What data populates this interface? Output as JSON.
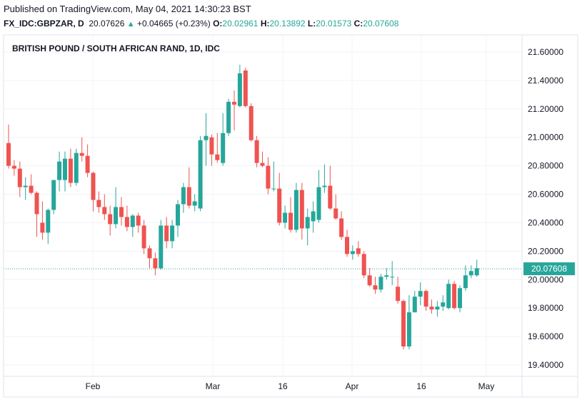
{
  "header": {
    "published": "Published on TradingView.com, May 04, 2021 14:30:23 BST",
    "symbol": "FX_IDC:GBPZAR, D",
    "last": "20.07626",
    "change": "+0.04665 (+0.23%)",
    "o_label": "O:",
    "o_value": "20.02961",
    "h_label": "H:",
    "h_value": "20.13892",
    "l_label": "L:",
    "l_value": "20.01573",
    "c_label": "C:",
    "c_value": "20.07608"
  },
  "colors": {
    "up": "#26a69a",
    "down": "#ef5350",
    "grid": "#f0f3fa",
    "frame": "#e0e3eb",
    "text": "#131722"
  },
  "chart_data": {
    "type": "candlestick",
    "title": "BRITISH POUND / SOUTH AFRICAN RAND, 1D, IDC",
    "ylim": [
      19.32,
      21.72
    ],
    "yticks": [
      "21.60000",
      "21.40000",
      "21.20000",
      "21.00000",
      "20.80000",
      "20.60000",
      "20.40000",
      "20.20000",
      "20.00000",
      "19.80000",
      "19.60000",
      "19.40000"
    ],
    "xticks": [
      "Feb",
      "Mar",
      "16",
      "Apr",
      "16",
      "May"
    ],
    "last_price_label": "20.07608",
    "last_price": 20.07608,
    "candles": [
      {
        "o": 20.96,
        "h": 21.09,
        "l": 20.78,
        "c": 20.8
      },
      {
        "o": 20.8,
        "h": 20.84,
        "l": 20.73,
        "c": 20.78
      },
      {
        "o": 20.78,
        "h": 20.83,
        "l": 20.58,
        "c": 20.65
      },
      {
        "o": 20.65,
        "h": 20.72,
        "l": 20.56,
        "c": 20.66
      },
      {
        "o": 20.66,
        "h": 20.74,
        "l": 20.6,
        "c": 20.61
      },
      {
        "o": 20.61,
        "h": 20.62,
        "l": 20.3,
        "c": 20.46
      },
      {
        "o": 20.4,
        "h": 20.55,
        "l": 20.28,
        "c": 20.33
      },
      {
        "o": 20.33,
        "h": 20.5,
        "l": 20.25,
        "c": 20.49
      },
      {
        "o": 20.49,
        "h": 20.68,
        "l": 20.46,
        "c": 20.7
      },
      {
        "o": 20.7,
        "h": 20.9,
        "l": 20.62,
        "c": 20.83
      },
      {
        "o": 20.7,
        "h": 20.9,
        "l": 20.62,
        "c": 20.85
      },
      {
        "o": 20.85,
        "h": 20.92,
        "l": 20.65,
        "c": 20.68
      },
      {
        "o": 20.68,
        "h": 20.92,
        "l": 20.66,
        "c": 20.89
      },
      {
        "o": 20.89,
        "h": 21.0,
        "l": 20.83,
        "c": 20.87
      },
      {
        "o": 20.87,
        "h": 20.95,
        "l": 20.72,
        "c": 20.75
      },
      {
        "o": 20.75,
        "h": 20.76,
        "l": 20.48,
        "c": 20.56
      },
      {
        "o": 20.56,
        "h": 20.62,
        "l": 20.47,
        "c": 20.51
      },
      {
        "o": 20.51,
        "h": 20.6,
        "l": 20.42,
        "c": 20.46
      },
      {
        "o": 20.46,
        "h": 20.52,
        "l": 20.31,
        "c": 20.39
      },
      {
        "o": 20.39,
        "h": 20.65,
        "l": 20.36,
        "c": 20.51
      },
      {
        "o": 20.51,
        "h": 20.58,
        "l": 20.38,
        "c": 20.44
      },
      {
        "o": 20.44,
        "h": 20.52,
        "l": 20.34,
        "c": 20.37
      },
      {
        "o": 20.37,
        "h": 20.46,
        "l": 20.3,
        "c": 20.45
      },
      {
        "o": 20.45,
        "h": 20.47,
        "l": 20.33,
        "c": 20.38
      },
      {
        "o": 20.38,
        "h": 20.42,
        "l": 20.18,
        "c": 20.22
      },
      {
        "o": 20.22,
        "h": 20.24,
        "l": 20.08,
        "c": 20.15
      },
      {
        "o": 20.15,
        "h": 20.19,
        "l": 20.03,
        "c": 20.08
      },
      {
        "o": 20.08,
        "h": 20.42,
        "l": 20.07,
        "c": 20.38
      },
      {
        "o": 20.38,
        "h": 20.44,
        "l": 20.22,
        "c": 20.27
      },
      {
        "o": 20.27,
        "h": 20.42,
        "l": 20.22,
        "c": 20.38
      },
      {
        "o": 20.38,
        "h": 20.56,
        "l": 20.3,
        "c": 20.53
      },
      {
        "o": 20.53,
        "h": 20.68,
        "l": 20.47,
        "c": 20.65
      },
      {
        "o": 20.65,
        "h": 20.79,
        "l": 20.5,
        "c": 20.52
      },
      {
        "o": 20.52,
        "h": 20.6,
        "l": 20.48,
        "c": 20.55
      },
      {
        "o": 20.5,
        "h": 21.01,
        "l": 20.48,
        "c": 20.98
      },
      {
        "o": 20.98,
        "h": 21.17,
        "l": 20.8,
        "c": 21.01
      },
      {
        "o": 21.0,
        "h": 21.02,
        "l": 20.8,
        "c": 20.88
      },
      {
        "o": 20.88,
        "h": 21.03,
        "l": 20.82,
        "c": 20.84
      },
      {
        "o": 20.82,
        "h": 21.17,
        "l": 20.8,
        "c": 21.03
      },
      {
        "o": 21.03,
        "h": 21.27,
        "l": 21.01,
        "c": 21.25
      },
      {
        "o": 21.25,
        "h": 21.33,
        "l": 21.05,
        "c": 21.23
      },
      {
        "o": 21.22,
        "h": 21.51,
        "l": 21.21,
        "c": 21.45
      },
      {
        "o": 21.47,
        "h": 21.49,
        "l": 21.21,
        "c": 21.22
      },
      {
        "o": 21.22,
        "h": 21.24,
        "l": 20.97,
        "c": 20.98
      },
      {
        "o": 20.98,
        "h": 21.01,
        "l": 20.79,
        "c": 20.82
      },
      {
        "o": 20.82,
        "h": 20.9,
        "l": 20.79,
        "c": 20.8
      },
      {
        "o": 20.8,
        "h": 20.86,
        "l": 20.6,
        "c": 20.64
      },
      {
        "o": 20.64,
        "h": 20.83,
        "l": 20.62,
        "c": 20.64
      },
      {
        "o": 20.64,
        "h": 20.75,
        "l": 20.38,
        "c": 20.4
      },
      {
        "o": 20.4,
        "h": 20.52,
        "l": 20.36,
        "c": 20.47
      },
      {
        "o": 20.47,
        "h": 20.58,
        "l": 20.33,
        "c": 20.35
      },
      {
        "o": 20.35,
        "h": 20.68,
        "l": 20.33,
        "c": 20.63
      },
      {
        "o": 20.63,
        "h": 20.68,
        "l": 20.28,
        "c": 20.36
      },
      {
        "o": 20.36,
        "h": 20.5,
        "l": 20.24,
        "c": 20.44
      },
      {
        "o": 20.41,
        "h": 20.55,
        "l": 20.33,
        "c": 20.48
      },
      {
        "o": 20.42,
        "h": 20.77,
        "l": 20.4,
        "c": 20.65
      },
      {
        "o": 20.65,
        "h": 20.81,
        "l": 20.61,
        "c": 20.66
      },
      {
        "o": 20.66,
        "h": 20.8,
        "l": 20.49,
        "c": 20.5
      },
      {
        "o": 20.5,
        "h": 20.6,
        "l": 20.42,
        "c": 20.43
      },
      {
        "o": 20.43,
        "h": 20.48,
        "l": 20.28,
        "c": 20.3
      },
      {
        "o": 20.3,
        "h": 20.35,
        "l": 20.16,
        "c": 20.18
      },
      {
        "o": 20.18,
        "h": 20.24,
        "l": 20.14,
        "c": 20.2
      },
      {
        "o": 20.22,
        "h": 20.27,
        "l": 20.16,
        "c": 20.18
      },
      {
        "o": 20.18,
        "h": 20.2,
        "l": 20.01,
        "c": 20.03
      },
      {
        "o": 20.03,
        "h": 20.08,
        "l": 19.95,
        "c": 19.96
      },
      {
        "o": 19.96,
        "h": 20.02,
        "l": 19.9,
        "c": 19.93
      },
      {
        "o": 19.93,
        "h": 20.04,
        "l": 19.91,
        "c": 20.02
      },
      {
        "o": 20.02,
        "h": 20.08,
        "l": 20.0,
        "c": 20.03
      },
      {
        "o": 20.02,
        "h": 20.13,
        "l": 19.96,
        "c": 20.02
      },
      {
        "o": 19.95,
        "h": 20.02,
        "l": 19.83,
        "c": 19.85
      },
      {
        "o": 19.85,
        "h": 19.86,
        "l": 19.51,
        "c": 19.53
      },
      {
        "o": 19.53,
        "h": 19.89,
        "l": 19.51,
        "c": 19.77
      },
      {
        "o": 19.77,
        "h": 19.92,
        "l": 19.77,
        "c": 19.88
      },
      {
        "o": 19.88,
        "h": 19.98,
        "l": 19.82,
        "c": 19.92
      },
      {
        "o": 19.92,
        "h": 19.93,
        "l": 19.78,
        "c": 19.81
      },
      {
        "o": 19.81,
        "h": 19.86,
        "l": 19.76,
        "c": 19.79
      },
      {
        "o": 19.79,
        "h": 19.85,
        "l": 19.74,
        "c": 19.81
      },
      {
        "o": 19.81,
        "h": 19.89,
        "l": 19.78,
        "c": 19.84
      },
      {
        "o": 19.8,
        "h": 20.0,
        "l": 19.79,
        "c": 19.97
      },
      {
        "o": 19.97,
        "h": 19.99,
        "l": 19.79,
        "c": 19.8
      },
      {
        "o": 19.8,
        "h": 19.96,
        "l": 19.77,
        "c": 19.94
      },
      {
        "o": 19.94,
        "h": 20.1,
        "l": 19.92,
        "c": 20.03
      },
      {
        "o": 20.03,
        "h": 20.1,
        "l": 20.01,
        "c": 20.06
      },
      {
        "o": 20.03,
        "h": 20.14,
        "l": 20.02,
        "c": 20.08
      }
    ]
  }
}
